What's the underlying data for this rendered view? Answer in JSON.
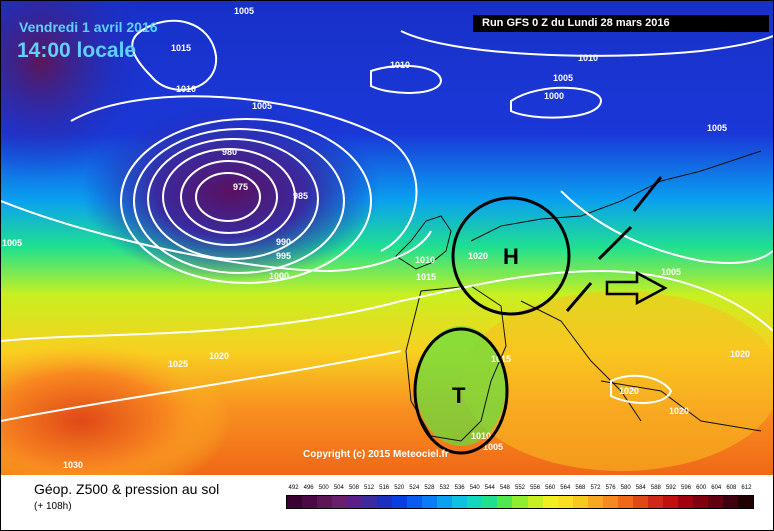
{
  "header": {
    "date": "Vendredi 1 avril 2016",
    "time": "14:00 locale",
    "run": "Run GFS 0 Z du Lundi 28 mars 2016"
  },
  "map": {
    "isobar_labels": [
      "1005",
      "1015",
      "1010",
      "1010",
      "1005",
      "1005",
      "1010",
      "1000",
      "1005",
      "1005",
      "980",
      "975",
      "985",
      "990",
      "995",
      "1000",
      "1005",
      "1010",
      "1015",
      "1020",
      "1015",
      "1020",
      "1025",
      "1020",
      "1020",
      "1020",
      "1030",
      "1010",
      "1005",
      "1005"
    ],
    "symbols": {
      "high": "H",
      "low": "T"
    },
    "copyright": "Copyright (c) 2015 Meteociel.fr"
  },
  "legend": {
    "title": "Géop. Z500 & pression au sol",
    "forecast": "(+ 108h)",
    "scale_values": [
      "492",
      "496",
      "500",
      "504",
      "508",
      "512",
      "516",
      "520",
      "524",
      "528",
      "532",
      "536",
      "540",
      "544",
      "548",
      "552",
      "556",
      "560",
      "564",
      "568",
      "572",
      "576",
      "580",
      "584",
      "588",
      "592",
      "596",
      "600",
      "604",
      "608",
      "612"
    ],
    "scale_colors": [
      "#3a0033",
      "#4b0a45",
      "#5c1657",
      "#6a1f6c",
      "#5a1f8a",
      "#3c2aa0",
      "#1c2fc0",
      "#0a3ee0",
      "#0a5cf0",
      "#0a7cf5",
      "#0ca0f0",
      "#10c0e0",
      "#12d8c0",
      "#20e090",
      "#50e850",
      "#90ee30",
      "#c8f020",
      "#f0f020",
      "#f8e020",
      "#f8c820",
      "#f8a820",
      "#f88820",
      "#f06818",
      "#e04818",
      "#d02818",
      "#c01010",
      "#a00010",
      "#800010",
      "#600010",
      "#400010",
      "#200000"
    ]
  }
}
